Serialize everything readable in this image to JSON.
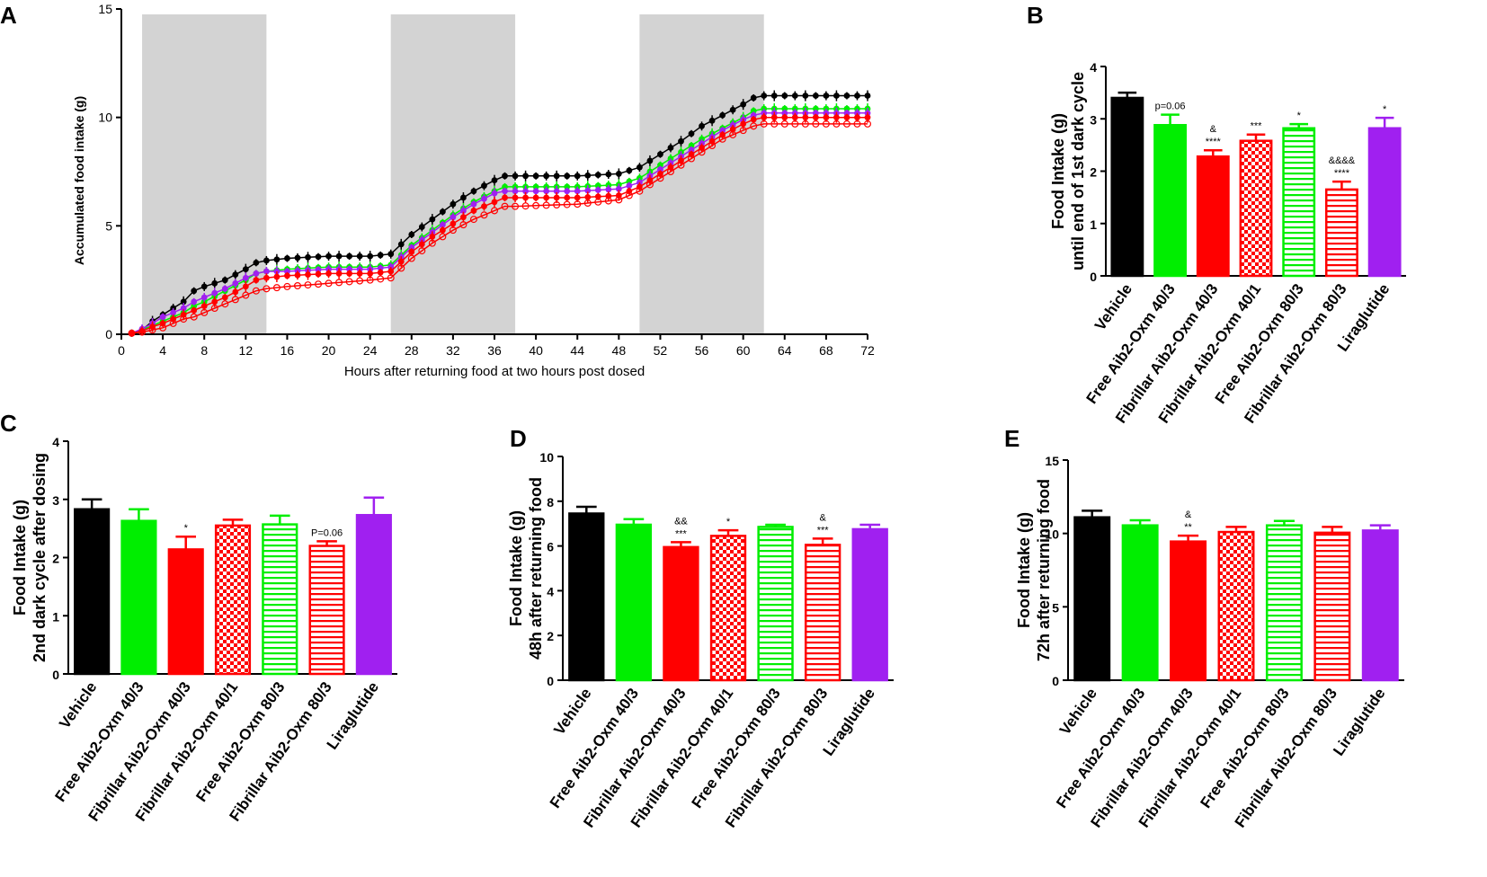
{
  "colors": {
    "vehicle": "#000000",
    "free": "#00ee00",
    "fibrillar": "#ff0000",
    "liraglutide": "#a020f0",
    "dark_cycle_shade": "#d3d3d3"
  },
  "categories": [
    "Vehicle",
    "Free Aib2-Oxm 40/3",
    "Fibrillar Aib2-Oxm 40/3",
    "Fibrillar Aib2-Oxm 40/1",
    "Free Aib2-Oxm 80/3",
    "Fibrillar Aib2-Oxm 80/3",
    "Liraglutide"
  ],
  "bar_styles": [
    {
      "color": "#000000",
      "pattern": "solid"
    },
    {
      "color": "#00ee00",
      "pattern": "solid"
    },
    {
      "color": "#ff0000",
      "pattern": "solid"
    },
    {
      "color": "#ff0000",
      "pattern": "check"
    },
    {
      "color": "#00ee00",
      "pattern": "hstripe"
    },
    {
      "color": "#ff0000",
      "pattern": "hstripe"
    },
    {
      "color": "#a020f0",
      "pattern": "solid"
    }
  ],
  "chart_data": [
    {
      "panel": "A",
      "type": "line",
      "xlabel": "Hours after returning food at two hours post dosed",
      "ylabel": "Accumulated food intake (g)",
      "xlim": [
        0,
        72
      ],
      "ylim": [
        0,
        15
      ],
      "xticks": [
        0,
        4,
        8,
        12,
        16,
        20,
        24,
        28,
        32,
        36,
        40,
        44,
        48,
        52,
        56,
        60,
        64,
        68,
        72
      ],
      "yticks": [
        0,
        5,
        10,
        15
      ],
      "dark_cycles": [
        [
          2,
          14
        ],
        [
          26,
          38
        ],
        [
          50,
          62
        ]
      ],
      "knots_x": [
        1,
        2,
        3,
        4,
        5,
        6,
        7,
        8,
        10,
        12,
        13,
        14,
        16,
        20,
        24,
        26,
        28,
        30,
        32,
        34,
        36,
        37,
        38,
        44,
        48,
        50,
        52,
        54,
        56,
        58,
        60,
        61,
        62,
        72
      ],
      "series": [
        {
          "name": "Vehicle",
          "color": "#000000",
          "marker": "filled",
          "y": [
            0.05,
            0.2,
            0.6,
            0.9,
            1.2,
            1.5,
            2.0,
            2.2,
            2.5,
            3.0,
            3.3,
            3.4,
            3.5,
            3.6,
            3.6,
            3.7,
            4.6,
            5.3,
            6.0,
            6.6,
            7.1,
            7.3,
            7.3,
            7.3,
            7.4,
            7.7,
            8.3,
            8.9,
            9.6,
            10.1,
            10.6,
            10.9,
            11.0,
            11.0
          ]
        },
        {
          "name": "Free Aib2-Oxm",
          "color": "#00ee00",
          "marker": "filled",
          "y": [
            0.05,
            0.2,
            0.4,
            0.6,
            0.8,
            1.0,
            1.3,
            1.5,
            2.0,
            2.5,
            2.8,
            2.9,
            3.0,
            3.1,
            3.1,
            3.2,
            4.1,
            4.8,
            5.5,
            6.1,
            6.6,
            6.8,
            6.8,
            6.8,
            6.9,
            7.2,
            7.8,
            8.4,
            9.0,
            9.5,
            10.0,
            10.3,
            10.4,
            10.4
          ]
        },
        {
          "name": "Liraglutide",
          "color": "#a020f0",
          "marker": "filled",
          "y": [
            0.05,
            0.25,
            0.5,
            0.8,
            1.0,
            1.2,
            1.5,
            1.7,
            2.1,
            2.6,
            2.8,
            2.9,
            2.9,
            3.0,
            3.0,
            3.1,
            4.0,
            4.7,
            5.4,
            6.0,
            6.5,
            6.6,
            6.6,
            6.6,
            6.7,
            7.0,
            7.6,
            8.2,
            8.8,
            9.4,
            9.9,
            10.1,
            10.2,
            10.2
          ]
        },
        {
          "name": "Fibrillar Aib2-Oxm",
          "color": "#ff0000",
          "marker": "filled",
          "y": [
            0.05,
            0.15,
            0.35,
            0.5,
            0.7,
            0.9,
            1.1,
            1.3,
            1.7,
            2.2,
            2.5,
            2.6,
            2.7,
            2.8,
            2.8,
            2.9,
            3.8,
            4.5,
            5.1,
            5.7,
            6.1,
            6.3,
            6.3,
            6.3,
            6.4,
            6.8,
            7.4,
            8.0,
            8.6,
            9.2,
            9.7,
            9.9,
            10.0,
            10.0
          ]
        },
        {
          "name": "Fibrillar Aib2-Oxm (open)",
          "color": "#ff0000",
          "marker": "open",
          "y": [
            0.05,
            0.1,
            0.2,
            0.3,
            0.5,
            0.7,
            0.8,
            1.0,
            1.4,
            1.8,
            2.0,
            2.1,
            2.2,
            2.35,
            2.5,
            2.6,
            3.5,
            4.2,
            4.8,
            5.3,
            5.7,
            5.9,
            5.9,
            6.0,
            6.2,
            6.6,
            7.2,
            7.8,
            8.4,
            9.0,
            9.4,
            9.6,
            9.7,
            9.7
          ]
        }
      ]
    },
    {
      "panel": "B",
      "type": "bar",
      "ylabel_lines": [
        "Food Intake  (g)",
        "until end of 1st dark cycle"
      ],
      "ylim": [
        0,
        4
      ],
      "yticks": [
        0,
        1,
        2,
        3,
        4
      ],
      "values": [
        3.4,
        2.88,
        2.28,
        2.58,
        2.82,
        1.65,
        2.82
      ],
      "errors": [
        0.1,
        0.2,
        0.12,
        0.12,
        0.08,
        0.15,
        0.2
      ],
      "annotations": [
        [],
        [
          "p=0.06"
        ],
        [
          "&",
          "****"
        ],
        [
          "***"
        ],
        [
          "*"
        ],
        [
          "&&&&",
          "****"
        ],
        [
          "*"
        ]
      ]
    },
    {
      "panel": "C",
      "type": "bar",
      "ylabel_lines": [
        "Food Intake  (g)",
        "2nd dark cycle after dosing"
      ],
      "ylim": [
        0,
        4
      ],
      "yticks": [
        0,
        1,
        2,
        3,
        4
      ],
      "values": [
        2.83,
        2.63,
        2.14,
        2.55,
        2.57,
        2.2,
        2.73
      ],
      "errors": [
        0.17,
        0.2,
        0.22,
        0.1,
        0.15,
        0.08,
        0.3
      ],
      "annotations": [
        [],
        [],
        [
          "*"
        ],
        [],
        [],
        [
          "P=0.06"
        ],
        []
      ]
    },
    {
      "panel": "D",
      "type": "bar",
      "ylabel_lines": [
        "Food Intake  (g)",
        "48h after returning food"
      ],
      "ylim": [
        0,
        10
      ],
      "yticks": [
        0,
        2,
        4,
        6,
        8,
        10
      ],
      "values": [
        7.45,
        6.95,
        5.95,
        6.45,
        6.85,
        6.05,
        6.75
      ],
      "errors": [
        0.3,
        0.25,
        0.22,
        0.25,
        0.1,
        0.28,
        0.2
      ],
      "annotations": [
        [],
        [],
        [
          "&&",
          "***"
        ],
        [
          "*"
        ],
        [],
        [
          "&",
          "***"
        ],
        []
      ]
    },
    {
      "panel": "E",
      "type": "bar",
      "ylabel_lines": [
        "Food Intake  (g)",
        "72h after returning food"
      ],
      "ylim": [
        0,
        15
      ],
      "yticks": [
        0,
        5,
        10,
        15
      ],
      "values": [
        11.1,
        10.55,
        9.45,
        10.1,
        10.55,
        10.05,
        10.2
      ],
      "errors": [
        0.45,
        0.35,
        0.4,
        0.35,
        0.3,
        0.4,
        0.35
      ],
      "annotations": [
        [],
        [],
        [
          "&",
          "**"
        ],
        [],
        [],
        [],
        []
      ]
    }
  ]
}
